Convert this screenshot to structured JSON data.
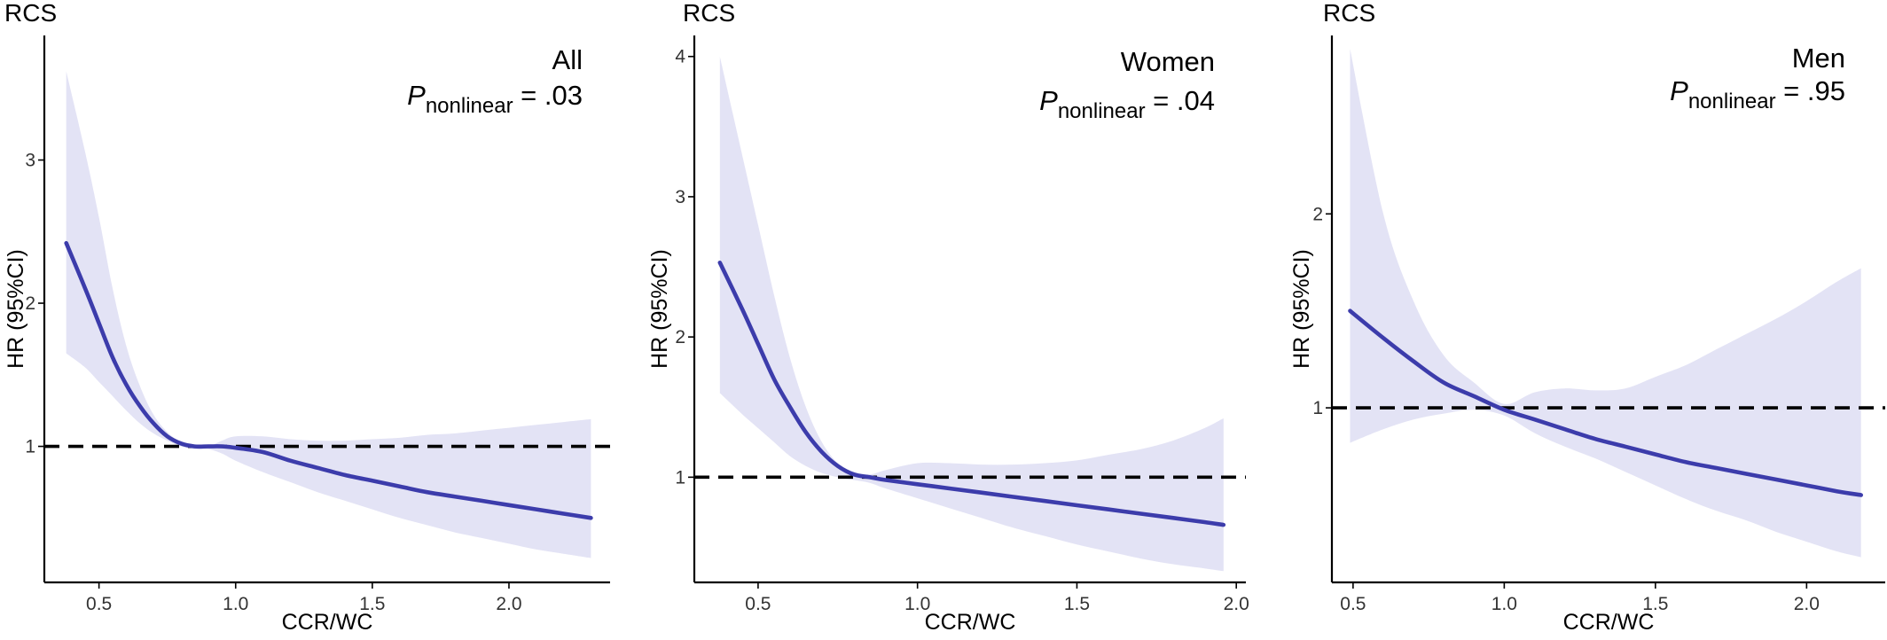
{
  "chart_data": [
    {
      "type": "line",
      "panel_tag": "RCS",
      "subgroup": "All",
      "p_label": "P",
      "p_subscript": "nonlinear",
      "p_value_text": "= .03",
      "xlabel": "CCR/WC",
      "ylabel": "HR (95%CI)",
      "x_ticks": [
        "0.5",
        "1.0",
        "1.5",
        "2.0"
      ],
      "y_ticks": [
        "1",
        "2",
        "3"
      ],
      "xlim": [
        0.3,
        2.37
      ],
      "ylim": [
        0.05,
        3.87
      ],
      "reference_line": 1,
      "series": [
        {
          "x": [
            0.38,
            0.45,
            0.5,
            0.55,
            0.6,
            0.65,
            0.7,
            0.75,
            0.8,
            0.85,
            0.9,
            0.95,
            1.0,
            1.1,
            1.2,
            1.3,
            1.4,
            1.5,
            1.6,
            1.7,
            1.8,
            1.9,
            2.0,
            2.1,
            2.2,
            2.3
          ],
          "y": [
            2.42,
            2.1,
            1.86,
            1.62,
            1.43,
            1.28,
            1.16,
            1.07,
            1.02,
            1.0,
            1.0,
            1.0,
            0.99,
            0.96,
            0.9,
            0.85,
            0.8,
            0.76,
            0.72,
            0.68,
            0.65,
            0.62,
            0.59,
            0.56,
            0.53,
            0.5
          ],
          "lower": [
            1.65,
            1.55,
            1.45,
            1.35,
            1.25,
            1.16,
            1.09,
            1.04,
            1.0,
            0.98,
            0.98,
            0.95,
            0.9,
            0.82,
            0.75,
            0.68,
            0.62,
            0.56,
            0.5,
            0.45,
            0.4,
            0.36,
            0.32,
            0.28,
            0.25,
            0.22
          ],
          "upper": [
            3.62,
            3.05,
            2.6,
            2.1,
            1.7,
            1.42,
            1.22,
            1.1,
            1.03,
            1.01,
            1.0,
            1.04,
            1.07,
            1.07,
            1.05,
            1.04,
            1.04,
            1.05,
            1.06,
            1.08,
            1.09,
            1.11,
            1.13,
            1.15,
            1.17,
            1.19
          ]
        }
      ]
    },
    {
      "type": "line",
      "panel_tag": "RCS",
      "subgroup": "Women",
      "p_label": "P",
      "p_subscript": "nonlinear",
      "p_value_text": "= .04",
      "xlabel": "CCR/WC",
      "ylabel": "HR (95%CI)",
      "x_ticks": [
        "0.5",
        "1.0",
        "1.5",
        "2.0"
      ],
      "y_ticks": [
        "1",
        "2",
        "3",
        "4"
      ],
      "xlim": [
        0.3,
        2.03
      ],
      "ylim": [
        0.25,
        4.15
      ],
      "reference_line": 1,
      "series": [
        {
          "x": [
            0.38,
            0.45,
            0.5,
            0.55,
            0.6,
            0.65,
            0.7,
            0.75,
            0.8,
            0.85,
            0.9,
            1.0,
            1.1,
            1.2,
            1.3,
            1.4,
            1.5,
            1.6,
            1.7,
            1.8,
            1.9,
            1.96
          ],
          "y": [
            2.53,
            2.2,
            1.95,
            1.7,
            1.5,
            1.32,
            1.18,
            1.08,
            1.02,
            1.0,
            0.98,
            0.95,
            0.92,
            0.89,
            0.86,
            0.83,
            0.8,
            0.77,
            0.74,
            0.71,
            0.68,
            0.66
          ],
          "lower": [
            1.6,
            1.45,
            1.35,
            1.25,
            1.15,
            1.08,
            1.03,
            1.0,
            0.98,
            0.96,
            0.92,
            0.85,
            0.78,
            0.71,
            0.64,
            0.58,
            0.52,
            0.47,
            0.42,
            0.38,
            0.35,
            0.33
          ],
          "upper": [
            4.0,
            3.3,
            2.8,
            2.3,
            1.85,
            1.5,
            1.25,
            1.1,
            1.04,
            1.02,
            1.05,
            1.1,
            1.1,
            1.09,
            1.09,
            1.1,
            1.12,
            1.16,
            1.2,
            1.26,
            1.35,
            1.42
          ]
        }
      ]
    },
    {
      "type": "line",
      "panel_tag": "RCS",
      "subgroup": "Men",
      "p_label": "P",
      "p_subscript": "nonlinear",
      "p_value_text": "= .95",
      "xlabel": "CCR/WC",
      "ylabel": "HR (95%CI)",
      "x_ticks": [
        "0.5",
        "1.0",
        "1.5",
        "2.0"
      ],
      "y_ticks": [
        "1",
        "2"
      ],
      "xlim": [
        0.43,
        2.26
      ],
      "ylim": [
        0.1,
        2.92
      ],
      "reference_line": 1,
      "series": [
        {
          "x": [
            0.49,
            0.6,
            0.7,
            0.8,
            0.9,
            1.0,
            1.1,
            1.2,
            1.3,
            1.4,
            1.5,
            1.6,
            1.7,
            1.8,
            1.9,
            2.0,
            2.1,
            2.18
          ],
          "y": [
            1.5,
            1.36,
            1.24,
            1.13,
            1.06,
            0.99,
            0.94,
            0.89,
            0.84,
            0.8,
            0.76,
            0.72,
            0.69,
            0.66,
            0.63,
            0.6,
            0.57,
            0.55
          ],
          "lower": [
            0.82,
            0.89,
            0.94,
            0.97,
            0.99,
            0.96,
            0.87,
            0.8,
            0.74,
            0.67,
            0.6,
            0.53,
            0.47,
            0.42,
            0.36,
            0.31,
            0.26,
            0.23
          ],
          "upper": [
            2.85,
            2.0,
            1.55,
            1.27,
            1.13,
            1.02,
            1.08,
            1.1,
            1.09,
            1.1,
            1.16,
            1.22,
            1.3,
            1.38,
            1.46,
            1.55,
            1.65,
            1.72
          ]
        }
      ]
    }
  ]
}
